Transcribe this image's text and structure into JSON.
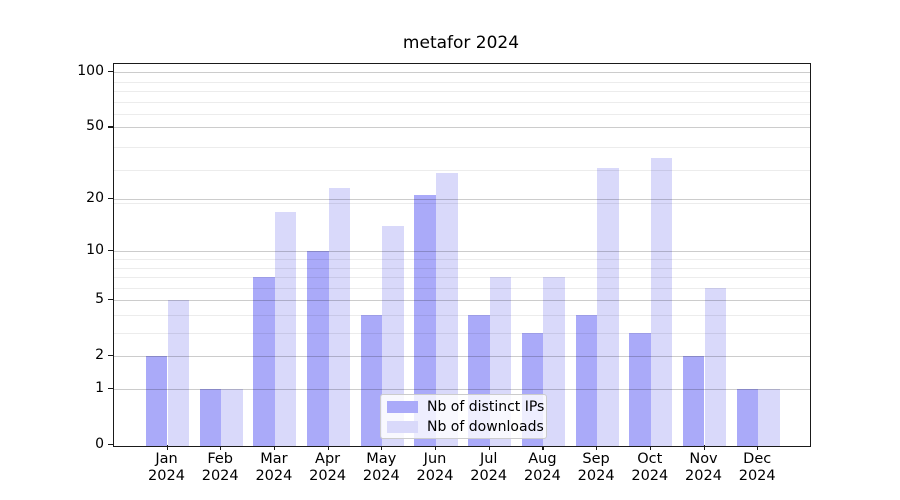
{
  "chart_data": {
    "type": "bar",
    "title": "metafor 2024",
    "x_labels": [
      {
        "month": "Jan",
        "year": "2024"
      },
      {
        "month": "Feb",
        "year": "2024"
      },
      {
        "month": "Mar",
        "year": "2024"
      },
      {
        "month": "Apr",
        "year": "2024"
      },
      {
        "month": "May",
        "year": "2024"
      },
      {
        "month": "Jun",
        "year": "2024"
      },
      {
        "month": "Jul",
        "year": "2024"
      },
      {
        "month": "Aug",
        "year": "2024"
      },
      {
        "month": "Sep",
        "year": "2024"
      },
      {
        "month": "Oct",
        "year": "2024"
      },
      {
        "month": "Nov",
        "year": "2024"
      },
      {
        "month": "Dec",
        "year": "2024"
      }
    ],
    "series": [
      {
        "name": "Nb of distinct IPs",
        "color": "#aaaaf9",
        "values": [
          2,
          1,
          7,
          10,
          4,
          21,
          4,
          3,
          4,
          3,
          2,
          1
        ]
      },
      {
        "name": "Nb of downloads",
        "color": "#d9d9fa",
        "values": [
          5,
          1,
          17,
          23,
          14,
          28,
          7,
          7,
          30,
          34,
          6,
          1
        ]
      }
    ],
    "yticks": [
      0,
      1,
      2,
      5,
      10,
      20,
      50,
      100
    ],
    "yscale": "log10(1+y)",
    "ylim": [
      0,
      110
    ],
    "grid": true,
    "legend_position": "lower center"
  }
}
